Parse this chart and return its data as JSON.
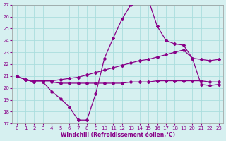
{
  "xlabel": "Windchill (Refroidissement éolien,°C)",
  "background_color": "#d6f0f0",
  "line_color": "#880088",
  "grid_color": "#aadddd",
  "xlim": [
    -0.5,
    23.5
  ],
  "ylim": [
    17,
    27
  ],
  "xticks": [
    0,
    1,
    2,
    3,
    4,
    5,
    6,
    7,
    8,
    9,
    10,
    11,
    12,
    13,
    14,
    15,
    16,
    17,
    18,
    19,
    20,
    21,
    22,
    23
  ],
  "yticks": [
    17,
    18,
    19,
    20,
    21,
    22,
    23,
    24,
    25,
    26,
    27
  ],
  "line1_x": [
    0,
    1,
    2,
    3,
    4,
    5,
    6,
    7,
    8,
    9,
    10,
    11,
    12,
    13,
    14,
    15,
    16,
    17,
    18,
    19,
    20,
    21,
    22,
    23
  ],
  "line1_y": [
    21.0,
    20.7,
    20.5,
    20.5,
    20.5,
    20.4,
    20.4,
    20.4,
    20.4,
    20.4,
    20.4,
    20.4,
    20.4,
    20.5,
    20.5,
    20.5,
    20.6,
    20.6,
    20.6,
    20.6,
    20.6,
    20.6,
    20.5,
    20.5
  ],
  "line2_x": [
    0,
    1,
    2,
    3,
    4,
    5,
    6,
    7,
    8,
    9,
    10,
    11,
    12,
    13,
    14,
    15,
    16,
    17,
    18,
    19,
    20,
    21,
    22,
    23
  ],
  "line2_y": [
    21.0,
    20.7,
    20.6,
    20.6,
    20.6,
    20.7,
    20.8,
    20.9,
    21.1,
    21.3,
    21.5,
    21.7,
    21.9,
    22.1,
    22.3,
    22.4,
    22.6,
    22.8,
    23.0,
    23.2,
    22.5,
    22.4,
    22.3,
    22.4
  ],
  "line3_x": [
    0,
    1,
    2,
    3,
    4,
    5,
    6,
    7,
    8,
    9,
    10,
    11,
    12,
    13,
    14,
    15,
    16,
    17,
    18,
    19,
    20,
    21,
    22,
    23
  ],
  "line3_y": [
    21.0,
    20.7,
    20.5,
    20.5,
    19.7,
    19.1,
    18.4,
    17.3,
    17.3,
    19.5,
    22.5,
    24.2,
    25.8,
    27.0,
    27.4,
    27.4,
    25.2,
    24.0,
    23.7,
    23.6,
    22.5,
    20.3,
    20.2,
    20.3
  ]
}
